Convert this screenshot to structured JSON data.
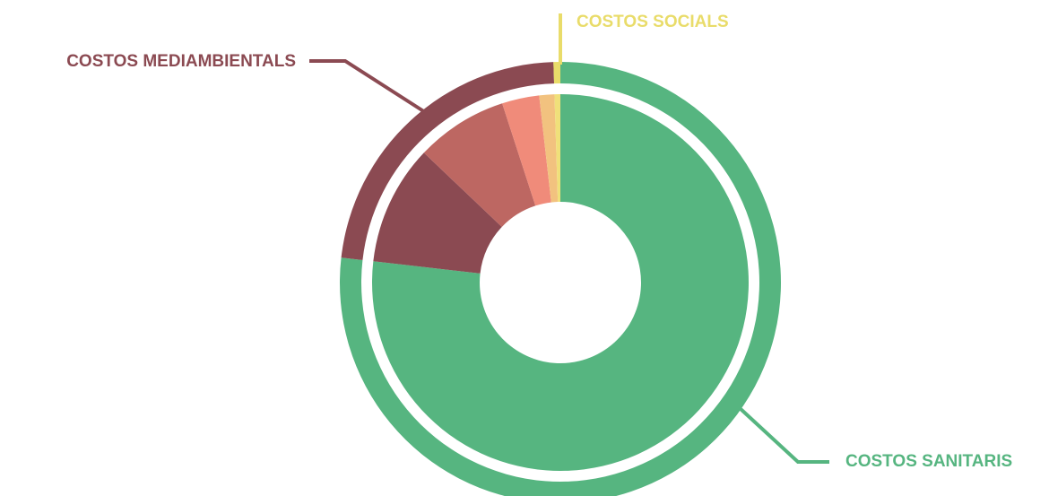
{
  "chart_data": {
    "type": "donut",
    "groups": [
      {
        "name": "COSTOS SANITARIS",
        "color": "#56b580",
        "value": 76.8
      },
      {
        "name": "COSTOS MEDIAMBIENTALS",
        "color": "#8b4a52",
        "value": 22.7
      },
      {
        "name": "COSTOS SOCIALS",
        "color": "#e9dc6a",
        "value": 0.5
      }
    ],
    "inner": {
      "values": [
        76.8,
        10.3,
        7.9,
        3.2,
        1.3,
        0.5
      ],
      "colors": [
        "#56b580",
        "#8b4a52",
        "#bd6762",
        "#f08b7a",
        "#f2c27f",
        "#f0e07a"
      ]
    }
  }
}
